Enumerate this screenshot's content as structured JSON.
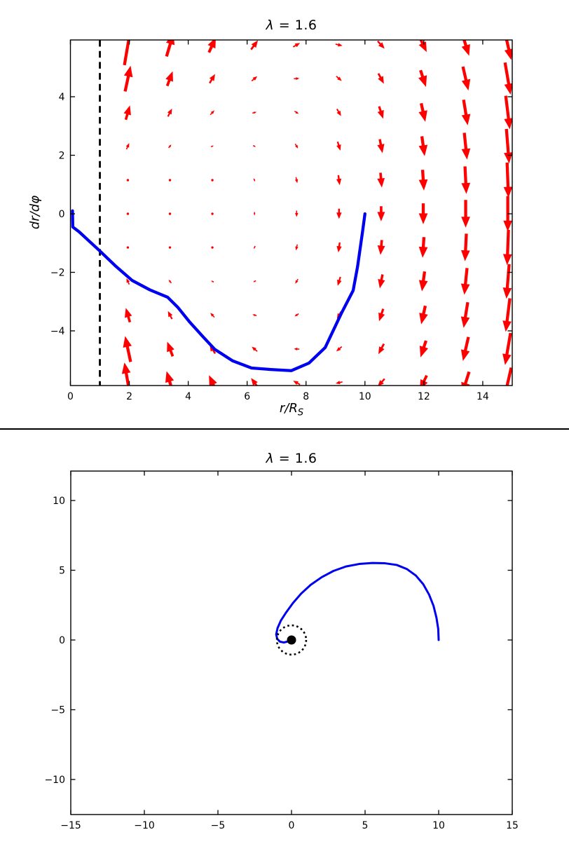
{
  "chart_data": [
    {
      "id": "phase-portrait",
      "type": "quiver+line",
      "title": "λ = 1.6",
      "title_symbol": "λ",
      "title_rest": " = 1.6",
      "xlabel": "r/R_S",
      "xlabel_main": "r/R",
      "xlabel_sub": "S",
      "ylabel": "dr/dφ",
      "xlim": [
        0,
        15
      ],
      "ylim": [
        -5.87,
        5.94
      ],
      "xticks": [
        0,
        2,
        4,
        6,
        8,
        10,
        12,
        14
      ],
      "yticks": [
        -4,
        -2,
        0,
        2,
        4
      ],
      "vline_x": 1,
      "colors": {
        "arrows": "#ff0000",
        "trajectory": "#0000f0",
        "vline": "#000000"
      },
      "quiver": {
        "r": [
          1.95,
          3.38,
          4.82,
          6.25,
          7.68,
          9.12,
          10.55,
          11.98,
          13.42,
          14.85
        ],
        "ydot": [
          -5.77,
          -4.62,
          -3.46,
          -2.31,
          -1.15,
          0,
          1.15,
          2.31,
          3.46,
          4.62,
          5.77
        ],
        "v": [
          [
            33.86,
            19.35,
            12.59,
            7.77,
            3.33,
            -1.32,
            -6.38,
            -11.99,
            -18.3,
            -25.24
          ],
          [
            21.6,
            12.28,
            7.64,
            3.95,
            0.22,
            -3.94,
            -8.64,
            -13.99,
            -20.08,
            -26.85
          ],
          [
            11.99,
            6.73,
            3.75,
            0.95,
            -2.22,
            -6.0,
            -10.42,
            -15.55,
            -21.48,
            -28.11
          ],
          [
            5.18,
            2.81,
            0.99,
            -1.17,
            -3.95,
            -7.46,
            -11.68,
            -16.66,
            -22.46,
            -29.0
          ],
          [
            1.07,
            0.43,
            -0.67,
            -2.46,
            -5.0,
            -8.34,
            -12.44,
            -17.33,
            -23.06,
            -29.54
          ],
          [
            -0.29,
            -0.35,
            -1.22,
            -2.88,
            -5.34,
            -8.63,
            -12.69,
            -17.55,
            -23.26,
            -29.72
          ],
          [
            1.07,
            0.43,
            -0.67,
            -2.46,
            -5.0,
            -8.34,
            -12.44,
            -17.33,
            -23.06,
            -29.54
          ],
          [
            5.18,
            2.81,
            0.99,
            -1.17,
            -3.95,
            -7.46,
            -11.68,
            -16.66,
            -22.46,
            -29.0
          ],
          [
            11.99,
            6.73,
            3.75,
            0.95,
            -2.22,
            -6.0,
            -10.42,
            -15.55,
            -21.48,
            -28.11
          ],
          [
            21.6,
            12.28,
            7.64,
            3.95,
            0.22,
            -3.94,
            -8.64,
            -13.99,
            -20.08,
            -26.85
          ],
          [
            33.86,
            19.35,
            12.59,
            7.77,
            3.33,
            -1.32,
            -6.38,
            -11.99,
            -18.3,
            -25.24
          ]
        ]
      },
      "trajectory": [
        [
          0.07,
          0.1
        ],
        [
          0.08,
          -0.45
        ],
        [
          0.3,
          -0.62
        ],
        [
          0.6,
          -0.9
        ],
        [
          1.0,
          -1.27
        ],
        [
          1.55,
          -1.8
        ],
        [
          2.1,
          -2.28
        ],
        [
          2.7,
          -2.6
        ],
        [
          3.3,
          -2.85
        ],
        [
          3.65,
          -3.2
        ],
        [
          4.05,
          -3.7
        ],
        [
          4.5,
          -4.2
        ],
        [
          4.9,
          -4.63
        ],
        [
          5.5,
          -5.02
        ],
        [
          6.15,
          -5.27
        ],
        [
          6.8,
          -5.32
        ],
        [
          7.5,
          -5.36
        ],
        [
          8.1,
          -5.1
        ],
        [
          8.65,
          -4.57
        ],
        [
          9.2,
          -3.4
        ],
        [
          9.6,
          -2.62
        ],
        [
          9.75,
          -1.8
        ],
        [
          9.92,
          -0.6
        ],
        [
          10.0,
          0.0
        ]
      ]
    },
    {
      "id": "orbit-plot",
      "type": "line",
      "title": "λ = 1.6",
      "title_symbol": "λ",
      "title_rest": " = 1.6",
      "xlim": [
        -15,
        15
      ],
      "ylim": [
        -12.5,
        12.1
      ],
      "xticks": [
        -15,
        -10,
        -5,
        0,
        5,
        10,
        15
      ],
      "yticks": [
        -10,
        -5,
        0,
        5,
        10
      ],
      "colors": {
        "orbit": "#0000f0",
        "horizon": "#000000",
        "dot": "#000000"
      },
      "orbit_path": [
        [
          10.0,
          0.0
        ],
        [
          9.97,
          0.8
        ],
        [
          9.85,
          1.6
        ],
        [
          9.65,
          2.45
        ],
        [
          9.35,
          3.25
        ],
        [
          8.95,
          4.0
        ],
        [
          8.45,
          4.62
        ],
        [
          7.85,
          5.08
        ],
        [
          7.15,
          5.38
        ],
        [
          6.35,
          5.5
        ],
        [
          5.5,
          5.52
        ],
        [
          4.6,
          5.45
        ],
        [
          3.7,
          5.27
        ],
        [
          2.85,
          4.95
        ],
        [
          2.05,
          4.5
        ],
        [
          1.3,
          3.95
        ],
        [
          0.65,
          3.32
        ],
        [
          0.1,
          2.65
        ],
        [
          -0.35,
          2.0
        ],
        [
          -0.72,
          1.4
        ],
        [
          -0.95,
          0.85
        ],
        [
          -1.04,
          0.4
        ],
        [
          -0.97,
          0.08
        ],
        [
          -0.78,
          -0.12
        ],
        [
          -0.52,
          -0.18
        ],
        [
          -0.3,
          -0.12
        ],
        [
          -0.18,
          -0.04
        ]
      ],
      "horizon_circle": {
        "cx": 0,
        "cy": 0,
        "radius": 1.0,
        "style": "dotted"
      },
      "black_hole_dot": {
        "cx": 0,
        "cy": 0,
        "radius_px": 6.5
      }
    }
  ]
}
